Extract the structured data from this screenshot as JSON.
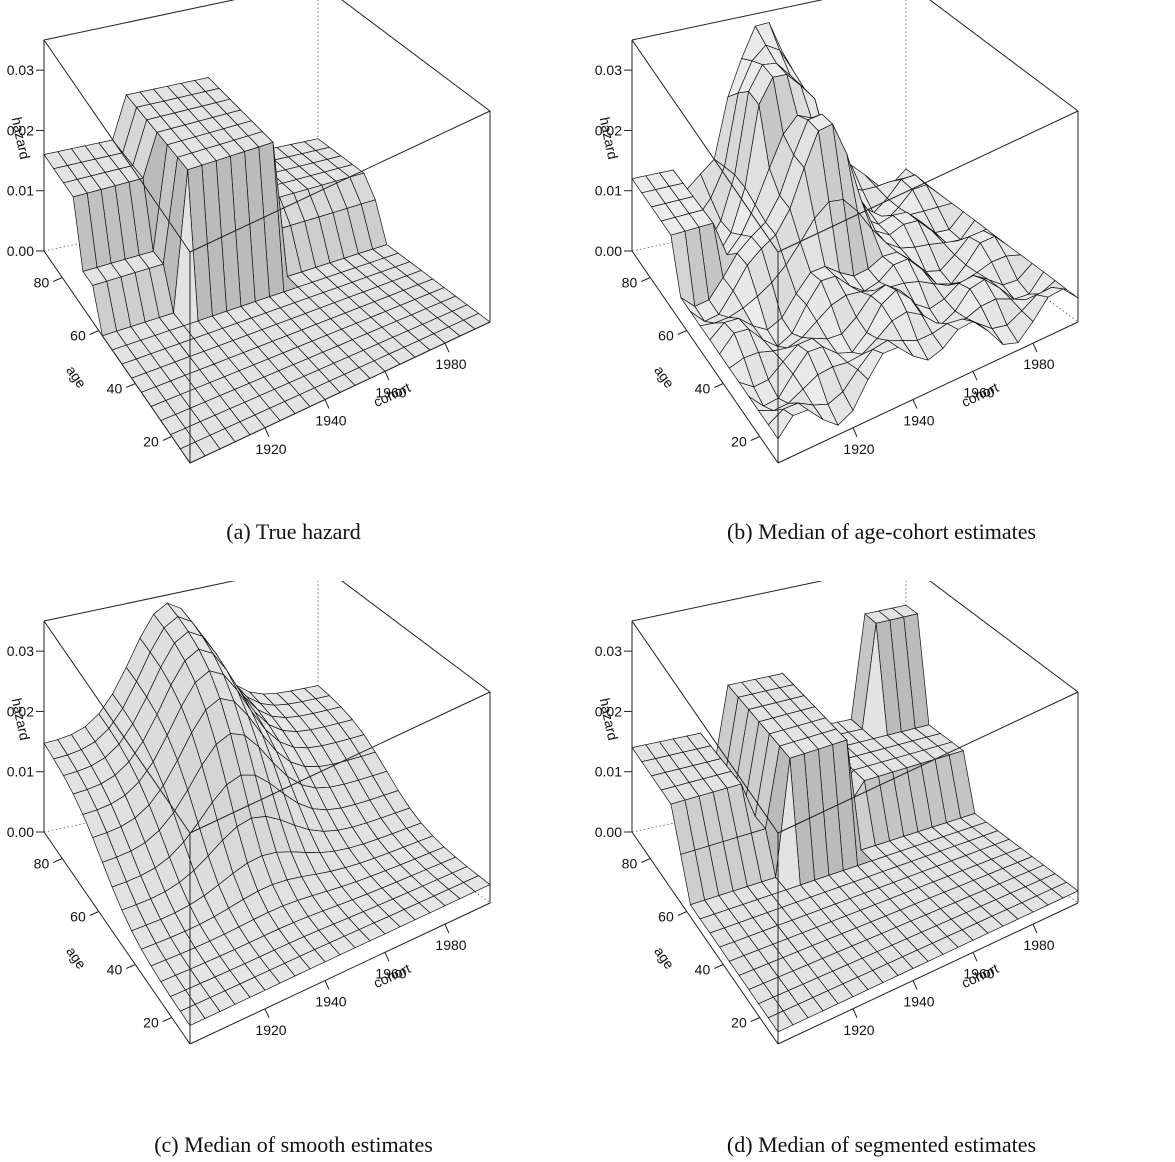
{
  "chart_data": [
    {
      "type": "surface",
      "caption": "(a) True hazard",
      "zlabel": "hazard",
      "ylabel": "age",
      "xlabel": "cohort",
      "zticks": [
        "0.00",
        "0.01",
        "0.02",
        "0.03"
      ],
      "yticks": [
        "20",
        "40",
        "60",
        "80"
      ],
      "xticks": [
        "1920",
        "1940",
        "1960",
        "1980"
      ],
      "zlim": [
        0,
        0.035
      ],
      "surface_kind": "true",
      "fill": "#e3e3e3"
    },
    {
      "type": "surface",
      "caption": "(b) Median of age-cohort estimates",
      "zlabel": "hazard",
      "ylabel": "age",
      "xlabel": "cohort",
      "zticks": [
        "0.00",
        "0.01",
        "0.02",
        "0.03"
      ],
      "yticks": [
        "20",
        "40",
        "60",
        "80"
      ],
      "xticks": [
        "1920",
        "1940",
        "1960",
        "1980"
      ],
      "zlim": [
        0,
        0.035
      ],
      "surface_kind": "agecohort",
      "fill": "#ececec"
    },
    {
      "type": "surface",
      "caption": "(c) Median of smooth estimates",
      "zlabel": "hazard",
      "ylabel": "age",
      "xlabel": "cohort",
      "zticks": [
        "0.00",
        "0.01",
        "0.02",
        "0.03"
      ],
      "yticks": [
        "20",
        "40",
        "60",
        "80"
      ],
      "xticks": [
        "1920",
        "1940",
        "1960",
        "1980"
      ],
      "zlim": [
        0,
        0.035
      ],
      "surface_kind": "smooth",
      "fill": "#e6e6e6"
    },
    {
      "type": "surface",
      "caption": "(d) Median of segmented estimates",
      "zlabel": "hazard",
      "ylabel": "age",
      "xlabel": "cohort",
      "zticks": [
        "0.00",
        "0.01",
        "0.02",
        "0.03"
      ],
      "yticks": [
        "20",
        "40",
        "60",
        "80"
      ],
      "xticks": [
        "1920",
        "1940",
        "1960",
        "1980"
      ],
      "zlim": [
        0,
        0.035
      ],
      "surface_kind": "segmented",
      "fill": "#e3e3e3"
    }
  ]
}
